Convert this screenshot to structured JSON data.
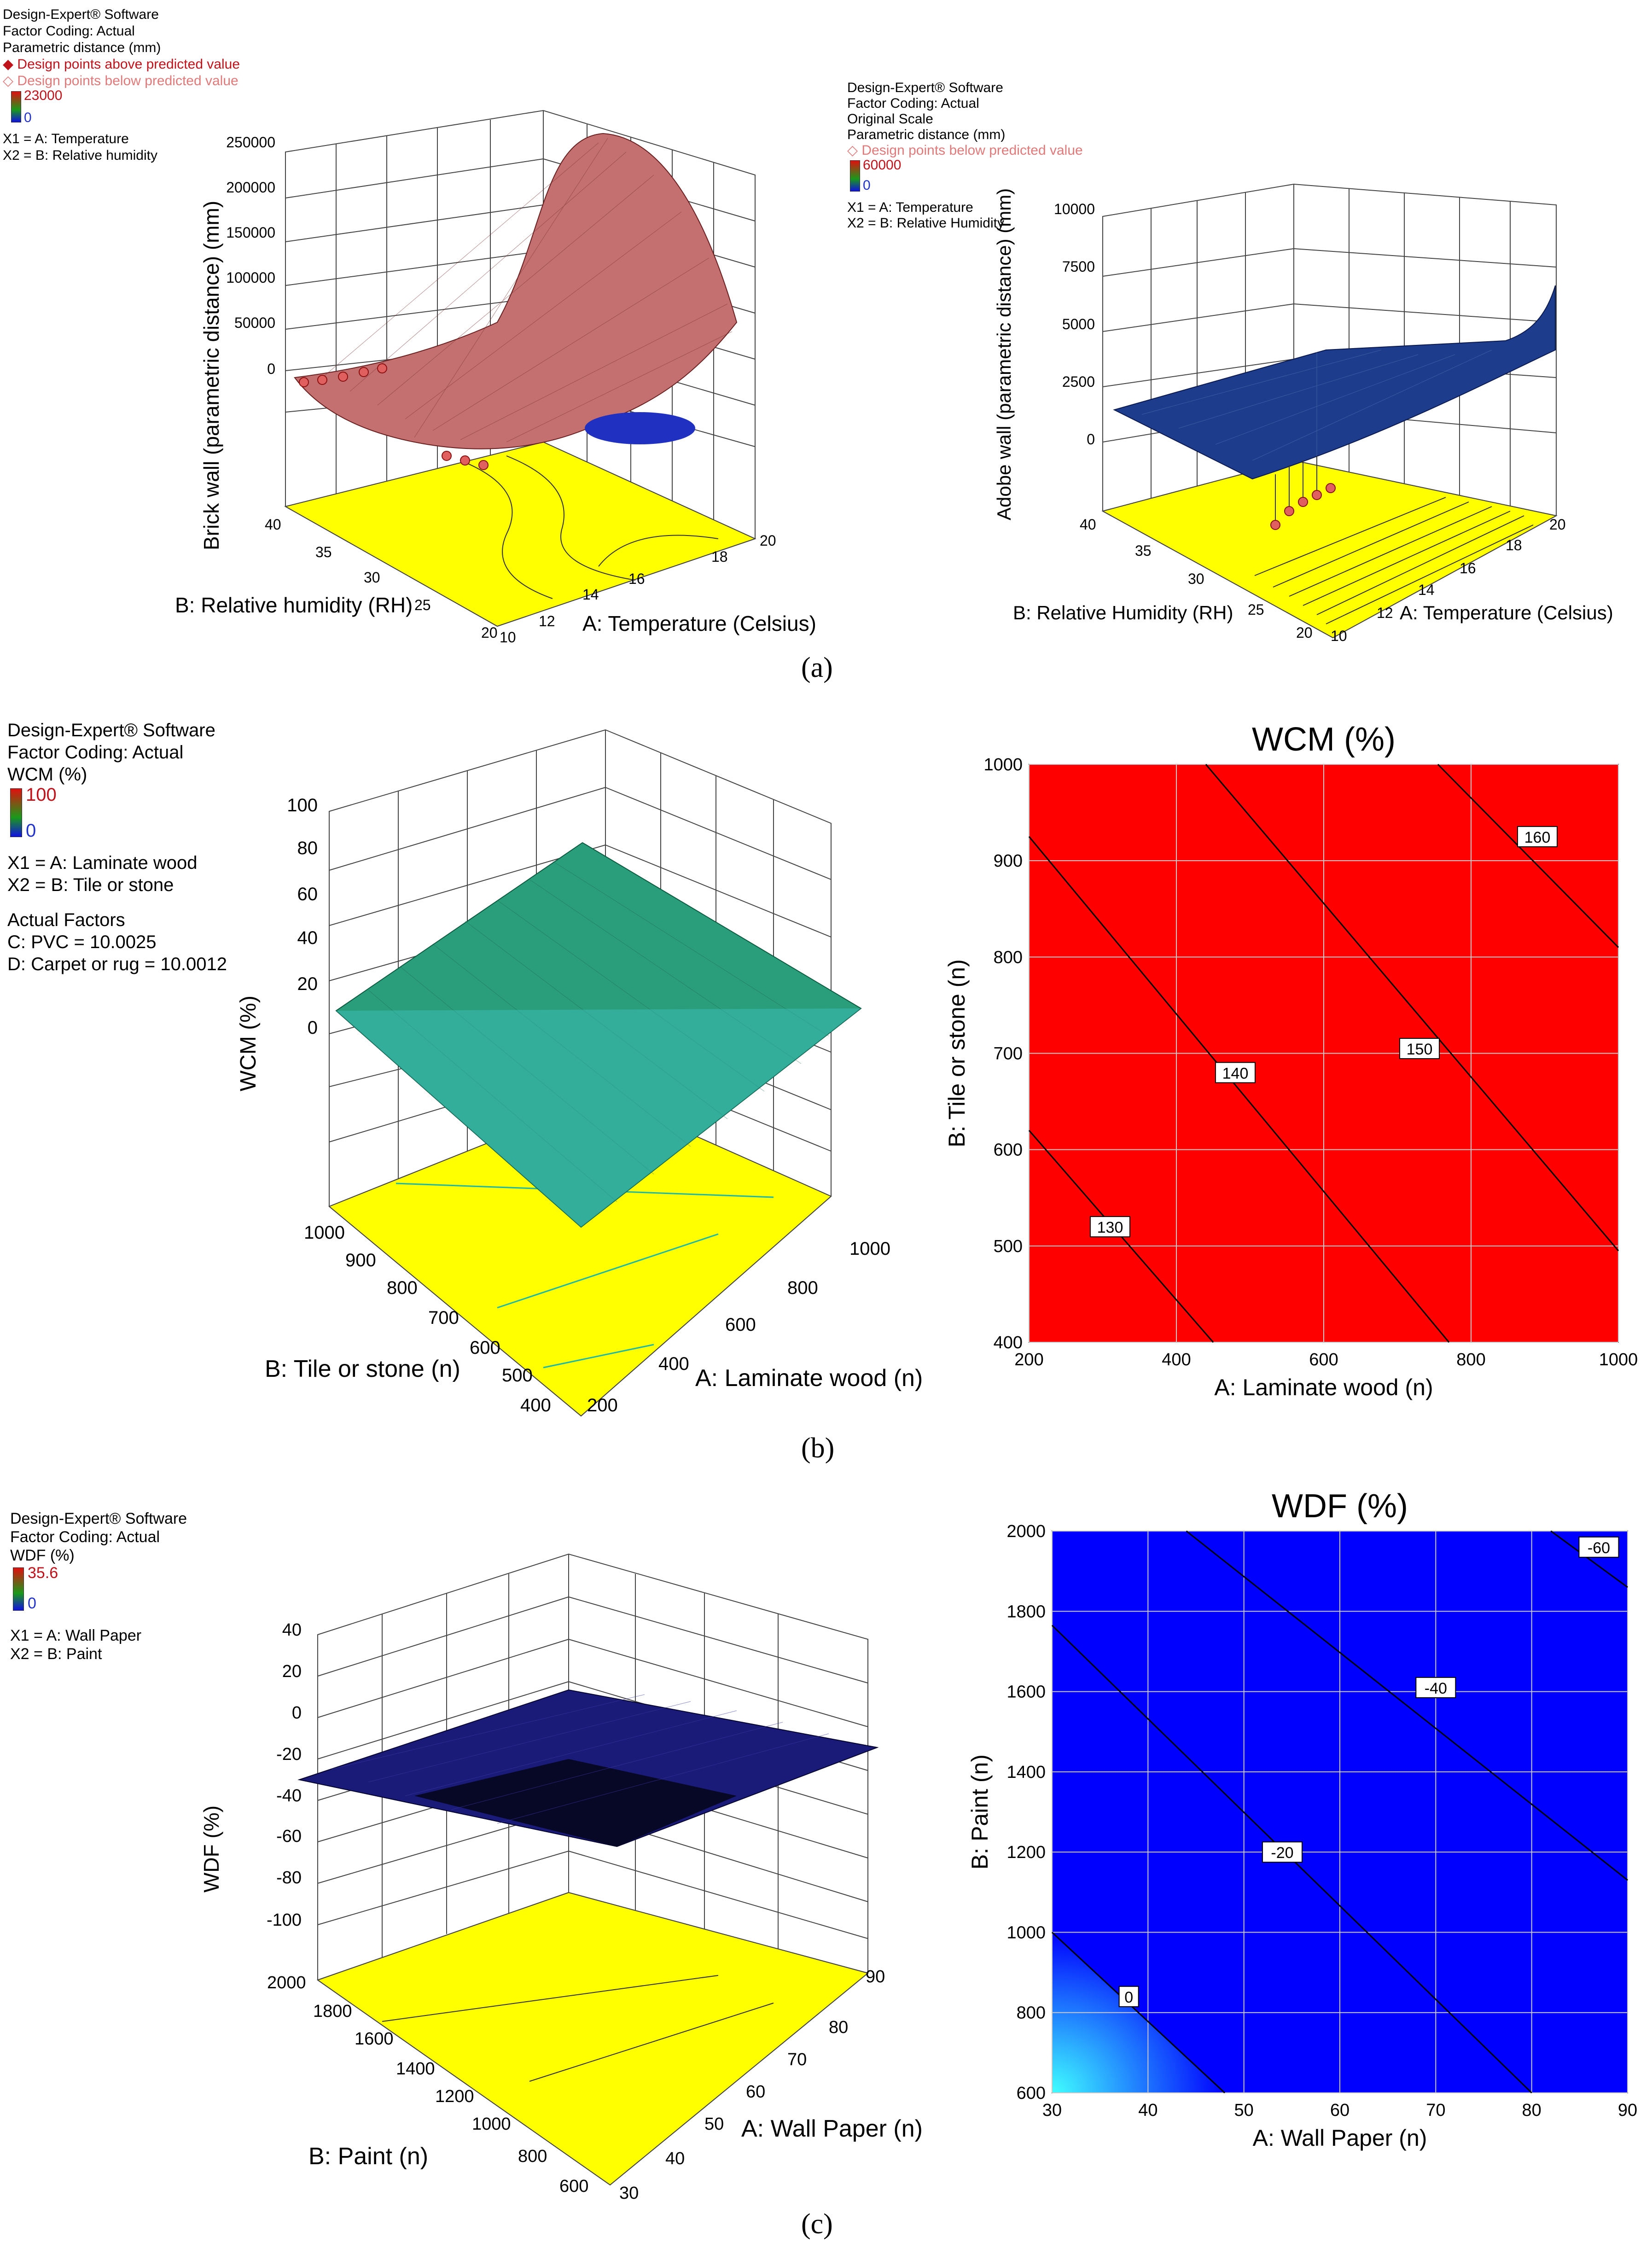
{
  "captions": {
    "a": "(a)",
    "b": "(b)",
    "c": "(c)"
  },
  "panel_a_left": {
    "legend": [
      "Design-Expert® Software",
      "Factor Coding: Actual",
      "Parametric distance (mm)"
    ],
    "above_label": "Design points above predicted value",
    "below_label": "Design points below predicted value",
    "scale_max": "23000",
    "scale_min": "0",
    "x1": "X1 = A: Temperature",
    "x2": "X2 = B: Relative humidity"
  },
  "panel_a_right": {
    "legend": [
      "Design-Expert® Software",
      "Factor Coding: Actual",
      "Original Scale",
      "Parametric distance (mm)"
    ],
    "below_label": "Design points below predicted value",
    "scale_max": "60000",
    "scale_min": "0",
    "x1": "X1 = A: Temperature",
    "x2": "X2 = B: Relative Humidity"
  },
  "panel_b_left": {
    "legend": [
      "Design-Expert® Software",
      "Factor Coding: Actual",
      "WCM (%)"
    ],
    "scale_max": "100",
    "scale_min": "0",
    "x1": "X1 = A: Laminate wood",
    "x2": "X2 = B: Tile or stone",
    "factors_title": "Actual Factors",
    "factor_c": "C: PVC = 10.0025",
    "factor_d": "D: Carpet or rug = 10.0012"
  },
  "panel_c_left": {
    "legend": [
      "Design-Expert® Software",
      "Factor Coding: Actual",
      "WDF (%)"
    ],
    "scale_max": "35.6",
    "scale_min": "0",
    "x1": "X1 = A: Wall Paper",
    "x2": "X2 = B: Paint"
  },
  "chart_data": [
    {
      "id": "a-left",
      "type": "surface",
      "zlabel": "Brick wall (parametric distance) (mm)",
      "xlabel": "A: Temperature (Celsius)",
      "ylabel": "B: Relative humidity (RH)",
      "z_ticks": [
        "250000",
        "200000",
        "150000",
        "100000",
        "50000",
        "0"
      ],
      "x_ticks": [
        "10",
        "12",
        "14",
        "16",
        "18",
        "20"
      ],
      "y_ticks": [
        "20",
        "25",
        "30",
        "35",
        "40"
      ],
      "surface_color": "#c87070",
      "floor_color": "#ffff00"
    },
    {
      "id": "a-right",
      "type": "surface",
      "zlabel": "Adobe wall (parametric distance) (mm)",
      "xlabel": "A: Temperature (Celsius)",
      "ylabel": "B: Relative Humidity (RH)",
      "z_ticks": [
        "10000",
        "7500",
        "5000",
        "2500",
        "0"
      ],
      "x_ticks": [
        "10",
        "12",
        "14",
        "16",
        "18",
        "20"
      ],
      "y_ticks": [
        "20",
        "25",
        "30",
        "35",
        "40"
      ],
      "surface_color": "#1e3c8c",
      "floor_color": "#ffff00"
    },
    {
      "id": "b-left",
      "type": "surface",
      "zlabel": "WCM (%)",
      "xlabel": "A: Laminate wood (n)",
      "ylabel": "B: Tile or stone (n)",
      "z_ticks": [
        "100",
        "80",
        "60",
        "40",
        "20",
        "0"
      ],
      "x_ticks": [
        "200",
        "400",
        "600",
        "800",
        "1000"
      ],
      "y_ticks": [
        "400",
        "500",
        "600",
        "700",
        "800",
        "900",
        "1000"
      ],
      "surface_color": "#2a9e7a",
      "floor_color": "#ffff00"
    },
    {
      "id": "b-right",
      "type": "contour",
      "title": "WCM (%)",
      "xlabel": "A: Laminate wood (n)",
      "ylabel": "B: Tile or stone (n)",
      "xlim": [
        200,
        1000
      ],
      "ylim": [
        400,
        1000
      ],
      "x_ticks": [
        200,
        400,
        600,
        800,
        1000
      ],
      "y_ticks": [
        400,
        500,
        600,
        700,
        800,
        900,
        1000
      ],
      "fill": "#ff0000",
      "contours": [
        {
          "label": "130",
          "points": [
            [
              200,
              620
            ],
            [
              450,
              400
            ]
          ],
          "label_at": [
            310,
            520
          ]
        },
        {
          "label": "140",
          "points": [
            [
              200,
              925
            ],
            [
              770,
              400
            ]
          ],
          "label_at": [
            480,
            680
          ]
        },
        {
          "label": "150",
          "points": [
            [
              440,
              1000
            ],
            [
              1000,
              495
            ]
          ],
          "label_at": [
            730,
            705
          ]
        },
        {
          "label": "160",
          "points": [
            [
              755,
              1000
            ],
            [
              1000,
              810
            ]
          ],
          "label_at": [
            890,
            925
          ]
        }
      ]
    },
    {
      "id": "c-left",
      "type": "surface",
      "zlabel": "WDF (%)",
      "xlabel": "A: Wall Paper (n)",
      "ylabel": "B: Paint (n)",
      "z_ticks": [
        "40",
        "20",
        "0",
        "-20",
        "-40",
        "-60",
        "-80",
        "-100"
      ],
      "x_ticks": [
        "30",
        "40",
        "50",
        "60",
        "70",
        "80",
        "90"
      ],
      "y_ticks": [
        "600",
        "800",
        "1000",
        "1200",
        "1400",
        "1600",
        "1800",
        "2000"
      ],
      "surface_color": "#1a1a78",
      "floor_color": "#ffff00"
    },
    {
      "id": "c-right",
      "type": "contour",
      "title": "WDF (%)",
      "xlabel": "A: Wall Paper (n)",
      "ylabel": "B: Paint (n)",
      "xlim": [
        30,
        90
      ],
      "ylim": [
        600,
        2000
      ],
      "x_ticks": [
        30,
        40,
        50,
        60,
        70,
        80,
        90
      ],
      "y_ticks": [
        600,
        800,
        1000,
        1200,
        1400,
        1600,
        1800,
        2000
      ],
      "fill": "#0000ff",
      "contours": [
        {
          "label": "0",
          "points": [
            [
              30,
              1000
            ],
            [
              48,
              600
            ]
          ],
          "label_at": [
            38,
            840
          ]
        },
        {
          "label": "-20",
          "points": [
            [
              30,
              1765
            ],
            [
              80,
              600
            ]
          ],
          "label_at": [
            54,
            1200
          ]
        },
        {
          "label": "-40",
          "points": [
            [
              44,
              2000
            ],
            [
              90,
              1130
            ]
          ],
          "label_at": [
            70,
            1610
          ]
        },
        {
          "label": "-60",
          "points": [
            [
              82,
              2000
            ],
            [
              90,
              1860
            ]
          ],
          "label_at": [
            87,
            1960
          ]
        }
      ]
    }
  ]
}
